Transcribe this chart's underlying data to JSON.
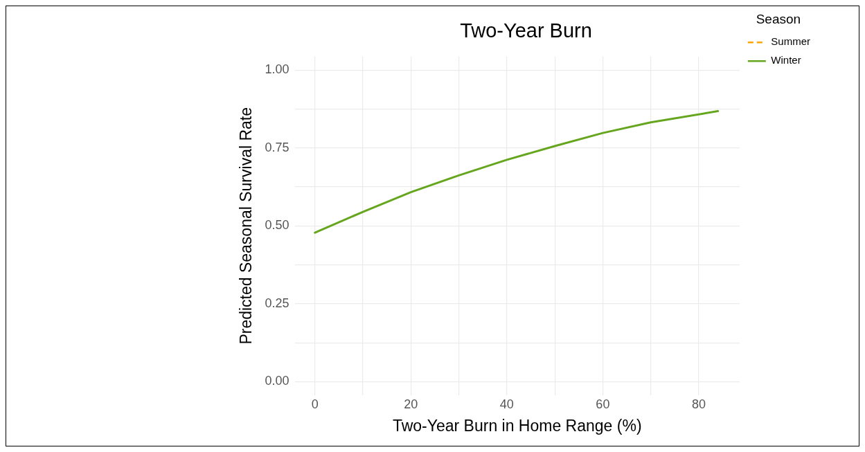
{
  "chart_data": {
    "type": "line",
    "title": "Two-Year Burn",
    "xlabel": "Two-Year Burn in Home Range (%)",
    "ylabel": "Predicted Seasonal Survival Rate",
    "legend_title": "Season",
    "legend": "top right",
    "grid": true,
    "marker": "none",
    "xlim": [
      -4.2,
      88.5
    ],
    "ylim": [
      -0.043,
      1.043
    ],
    "xticks": [
      0,
      {
        "value": 10,
        "label": null
      },
      20,
      {
        "value": 30,
        "label": null
      },
      40,
      {
        "value": 50,
        "label": null
      },
      60,
      {
        "value": 70,
        "label": null
      },
      80
    ],
    "yticks": [
      {
        "value": 0,
        "label": "0.00"
      },
      {
        "value": 0.125,
        "label": null
      },
      {
        "value": 0.25,
        "label": "0.25"
      },
      {
        "value": 0.375,
        "label": null
      },
      {
        "value": 0.5,
        "label": "0.50"
      },
      {
        "value": 0.625,
        "label": null
      },
      {
        "value": 0.75,
        "label": "0.75"
      },
      {
        "value": 0.875,
        "label": null
      },
      {
        "value": 1,
        "label": "1.00"
      }
    ],
    "series": [
      {
        "name": "Summer",
        "color": "#ffa500",
        "line_style": "dashed"
      },
      {
        "name": "Winter",
        "color": "#66a61e",
        "line_style": "solid",
        "x": [
          0,
          10,
          20,
          30,
          40,
          50,
          60,
          70,
          84
        ],
        "values": [
          0.478,
          0.545,
          0.608,
          0.662,
          0.712,
          0.756,
          0.798,
          0.832,
          0.868
        ]
      }
    ]
  }
}
